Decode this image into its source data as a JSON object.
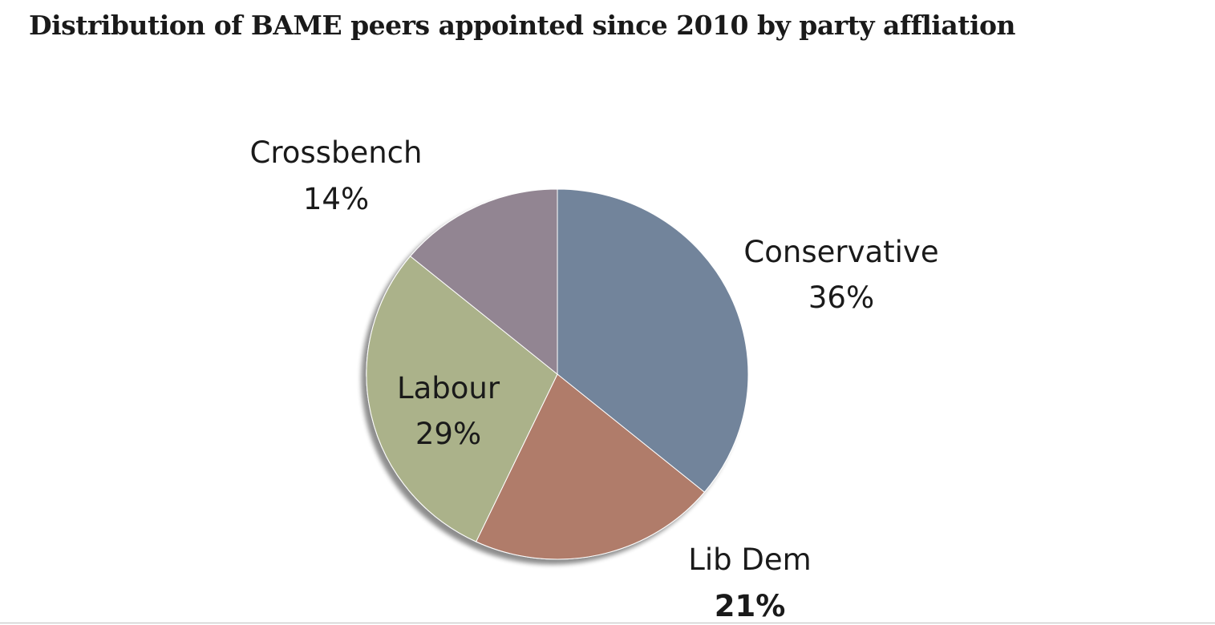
{
  "chart_data": {
    "type": "pie",
    "title": "Distribution of  BAME peers appointed since 2010 by party affliation",
    "slices": [
      {
        "name": "Conservative",
        "value": 36,
        "label": "36%",
        "color": "#72849b"
      },
      {
        "name": "Lib Dem",
        "value": 21,
        "label": "21%",
        "color": "#b07c6a"
      },
      {
        "name": "Labour",
        "value": 29,
        "label": "29%",
        "color": "#abb28a"
      },
      {
        "name": "Crossbench",
        "value": 14,
        "label": "14%",
        "color": "#928592"
      }
    ],
    "start_angle_deg": 0,
    "direction": "clockwise"
  }
}
